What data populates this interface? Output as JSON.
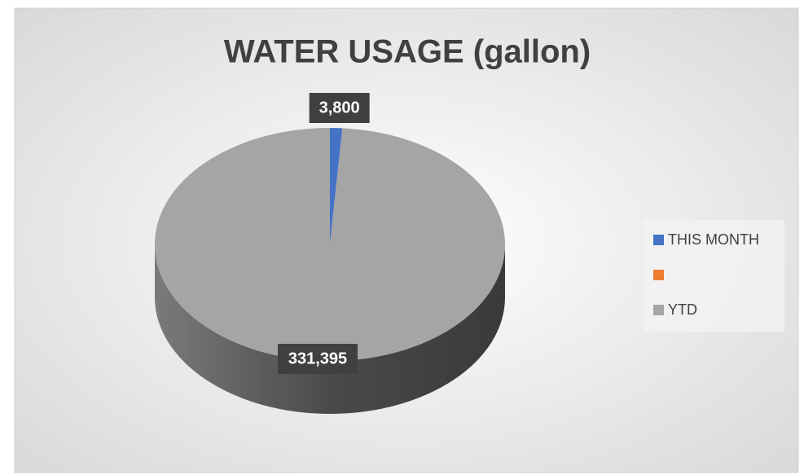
{
  "chart_data": {
    "type": "pie",
    "title": "WATER USAGE (gallon)",
    "categories": [
      "THIS MONTH",
      null,
      "YTD"
    ],
    "values": [
      3800,
      0,
      331395
    ],
    "value_labels": [
      "3,800",
      null,
      "331,395"
    ],
    "colors": [
      "#4472c4",
      "#ed7d31",
      "#a5a5a5"
    ],
    "three_d": true,
    "legend": "right"
  }
}
